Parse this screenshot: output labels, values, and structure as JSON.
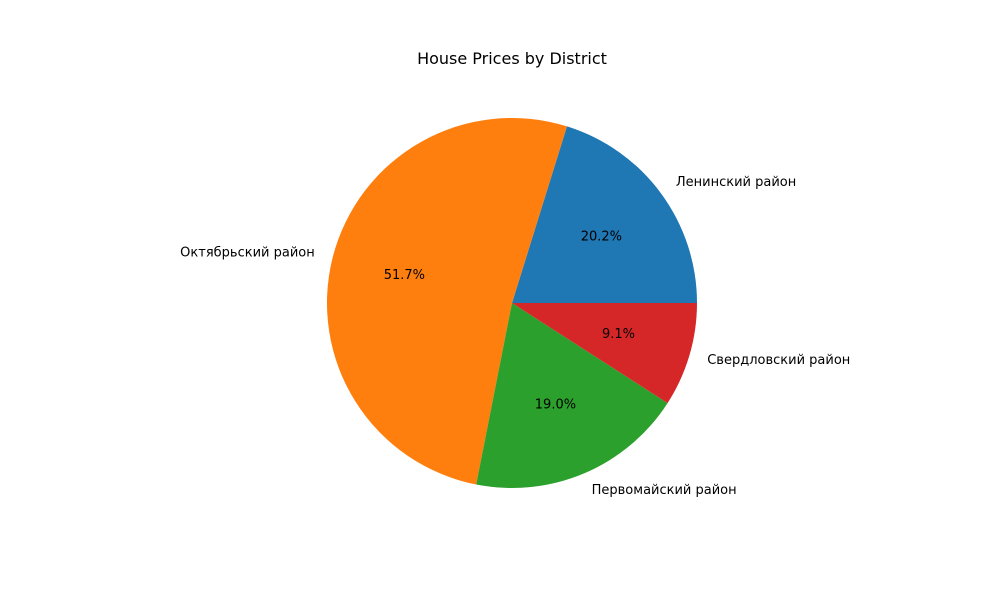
{
  "chart_data": {
    "type": "pie",
    "title": "House Prices by District",
    "categories": [
      "Ленинский район",
      "Октябрьский район",
      "Первомайский район",
      "Свердловский район"
    ],
    "values": [
      20.2,
      51.7,
      19.0,
      9.1
    ],
    "value_labels": [
      "20.2%",
      "51.7%",
      "19.0%",
      "9.1%"
    ],
    "colors": [
      "#1f77b4",
      "#ff7f0e",
      "#2ca02c",
      "#d62728"
    ],
    "start_angle_deg": 0,
    "direction": "counterclockwise"
  }
}
